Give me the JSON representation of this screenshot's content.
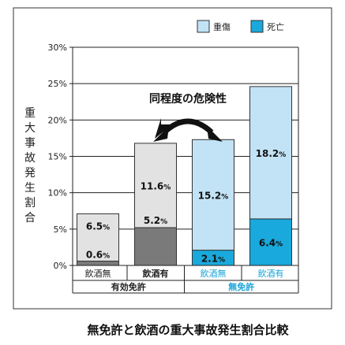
{
  "chart_data": {
    "type": "bar",
    "stacked": true,
    "ylabel": "重大事故発生割合",
    "ylim": [
      0,
      30
    ],
    "yticks": [
      "0%",
      "5%",
      "10%",
      "15%",
      "20%",
      "25%",
      "30%"
    ],
    "grid": true,
    "legend_position": "top-right",
    "categories": [
      "飲酒無",
      "飲酒有",
      "飲酒無",
      "飲酒有"
    ],
    "groups": [
      {
        "label": "有効免許",
        "categories": [
          0,
          1
        ]
      },
      {
        "label": "無免許",
        "categories": [
          2,
          3
        ]
      }
    ],
    "series": [
      {
        "name": "死亡",
        "values": [
          0.6,
          5.2,
          2.1,
          6.4
        ]
      },
      {
        "name": "重傷",
        "values": [
          6.5,
          11.6,
          15.2,
          18.2
        ]
      }
    ],
    "data_labels": {
      "bottom": [
        "0.6",
        "5.2",
        "2.1",
        "6.4"
      ],
      "top": [
        "6.5",
        "11.6",
        "15.2",
        "18.2"
      ],
      "unit": "%"
    },
    "annotation": "同程度の危険性",
    "caption": "無免許と飲酒の重大事故発生割合比較"
  },
  "colors": {
    "licensed_fatal": "#7a7a7a",
    "licensed_injury": "#e2e2e2",
    "unlicensed_fatal": "#19a9dc",
    "unlicensed_injury": "#c2e3f6",
    "blue_text": "#1aa3d6"
  }
}
